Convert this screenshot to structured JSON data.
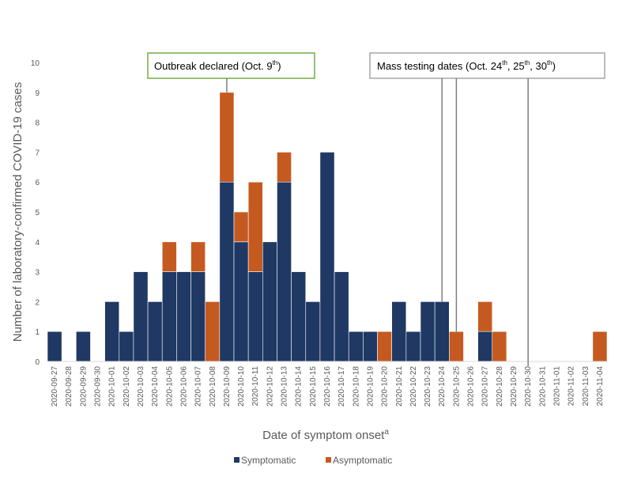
{
  "chart_data": {
    "type": "bar",
    "stacked": true,
    "categories": [
      "2020-09-27",
      "2020-09-28",
      "2020-09-29",
      "2020-09-30",
      "2020-10-01",
      "2020-10-02",
      "2020-10-03",
      "2020-10-04",
      "2020-10-05",
      "2020-10-06",
      "2020-10-07",
      "2020-10-08",
      "2020-10-09",
      "2020-10-10",
      "2020-10-11",
      "2020-10-12",
      "2020-10-13",
      "2020-10-14",
      "2020-10-15",
      "2020-10-16",
      "2020-10-17",
      "2020-10-18",
      "2020-10-19",
      "2020-10-20",
      "2020-10-21",
      "2020-10-22",
      "2020-10-23",
      "2020-10-24",
      "2020-10-25",
      "2020-10-26",
      "2020-10-27",
      "2020-10-28",
      "2020-10-29",
      "2020-10-30",
      "2020-10-31",
      "2020-11-01",
      "2020-11-02",
      "2020-11-03",
      "2020-11-04"
    ],
    "series": [
      {
        "name": "Symptomatic",
        "color": "#1f3864",
        "values": [
          1,
          0,
          1,
          0,
          2,
          1,
          3,
          2,
          3,
          3,
          3,
          0,
          6,
          4,
          3,
          4,
          6,
          3,
          2,
          7,
          3,
          1,
          1,
          0,
          2,
          1,
          2,
          2,
          0,
          0,
          1,
          0,
          0,
          0,
          0,
          0,
          0,
          0,
          0
        ]
      },
      {
        "name": "Asymptomatic",
        "color": "#c55a21",
        "values": [
          0,
          0,
          0,
          0,
          0,
          0,
          0,
          0,
          1,
          0,
          1,
          2,
          3,
          1,
          3,
          0,
          1,
          0,
          0,
          0,
          0,
          0,
          0,
          1,
          0,
          0,
          0,
          0,
          1,
          0,
          1,
          1,
          0,
          0,
          0,
          0,
          0,
          0,
          1
        ]
      }
    ],
    "xlabel": "Date of symptom onset",
    "xlabel_superscript": "a",
    "ylabel": "Number of laboratory-confirmed COVID-19 cases",
    "ylim": [
      0,
      10
    ],
    "yticks": [
      "0",
      "1",
      "2",
      "3",
      "4",
      "5",
      "6",
      "7",
      "8",
      "9",
      "10"
    ],
    "grid": false,
    "legend": "bottom",
    "annotations": [
      {
        "name": "outbreak",
        "text": "Outbreak declared (Oct. 9",
        "sup": "th",
        "tail": ")",
        "border_color": "#70ad47",
        "target_dates": [
          "2020-10-09"
        ]
      },
      {
        "name": "mass-testing",
        "text": "Mass testing dates (Oct. 24",
        "sup1": "th",
        "mid1": ", 25",
        "sup2": "th",
        "mid2": ", 30",
        "sup3": "th",
        "tail": ")",
        "border_color": "#a6a6a6",
        "target_dates": [
          "2020-10-24",
          "2020-10-25",
          "2020-10-30"
        ]
      }
    ]
  }
}
